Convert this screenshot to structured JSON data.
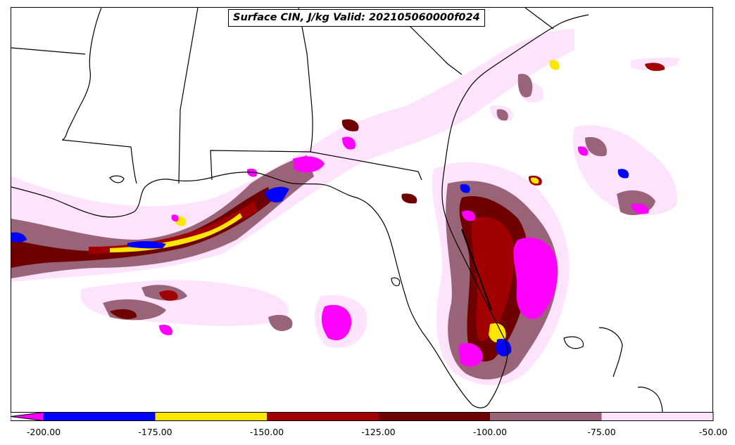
{
  "title": "Surface CIN, J/kg Valid: 202105060000f024",
  "colorbar": {
    "ticks": [
      "-200.00",
      "-175.00",
      "-150.00",
      "-125.00",
      "-100.00",
      "-75.00",
      "-50.00"
    ],
    "levels": [
      {
        "from": -200,
        "to": -175,
        "color": "#0000ff"
      },
      {
        "from": -175,
        "to": -150,
        "color": "#ffe600"
      },
      {
        "from": -150,
        "to": -125,
        "color": "#a00000"
      },
      {
        "from": -125,
        "to": -100,
        "color": "#6e0000"
      },
      {
        "from": -100,
        "to": -75,
        "color": "#9a6478"
      },
      {
        "from": -75,
        "to": -50,
        "color": "#fde4fc"
      }
    ],
    "under_color": "#ff00ff",
    "extend": "min"
  },
  "colors": {
    "coast_line": "#000000",
    "state_border": "#000000",
    "background": "#ffffff"
  }
}
